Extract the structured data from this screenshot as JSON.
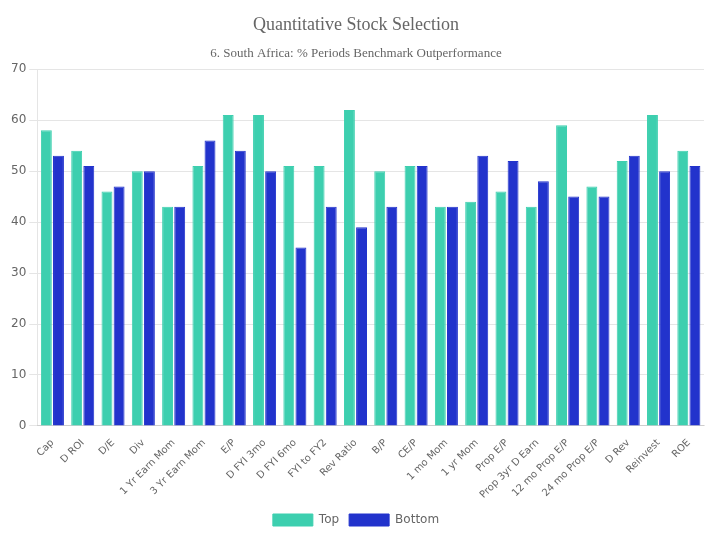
{
  "chart_data": {
    "type": "bar",
    "title": "Quantitative Stock Selection",
    "subtitle": "6. South Africa: % Periods Benchmark Outperformance",
    "categories": [
      "Cap",
      "D ROI",
      "D/E",
      "Div",
      "1 Yr Earn Mom",
      "3 Yr Earn Mom",
      "E/P",
      "D FYI 3mo",
      "D FYI 6mo",
      "FYI to FY2",
      "Rev Ratio",
      "B/P",
      "CE/P",
      "1 mo Mom",
      "1 yr Mom",
      "Prop E/P",
      "Prop 3yr D Earn",
      "12 mo Prop E/P",
      "24 mo Prop E/P",
      "D Rev",
      "Reinvest",
      "ROE"
    ],
    "series": [
      {
        "name": "Top",
        "color": "#3DCFAF",
        "values": [
          58,
          54,
          46,
          50,
          43,
          51,
          61,
          61,
          51,
          51,
          62,
          50,
          51,
          43,
          44,
          46,
          43,
          59,
          47,
          52,
          61,
          54
        ]
      },
      {
        "name": "Bottom",
        "color": "#2233CC",
        "values": [
          53,
          51,
          47,
          50,
          43,
          56,
          54,
          50,
          35,
          43,
          39,
          43,
          51,
          43,
          53,
          52,
          48,
          45,
          45,
          53,
          50,
          51
        ]
      }
    ],
    "ylim": [
      0,
      70
    ],
    "yticks": [
      0,
      10,
      20,
      30,
      40,
      50,
      60,
      70
    ],
    "grid": true,
    "legend": "bottom"
  }
}
